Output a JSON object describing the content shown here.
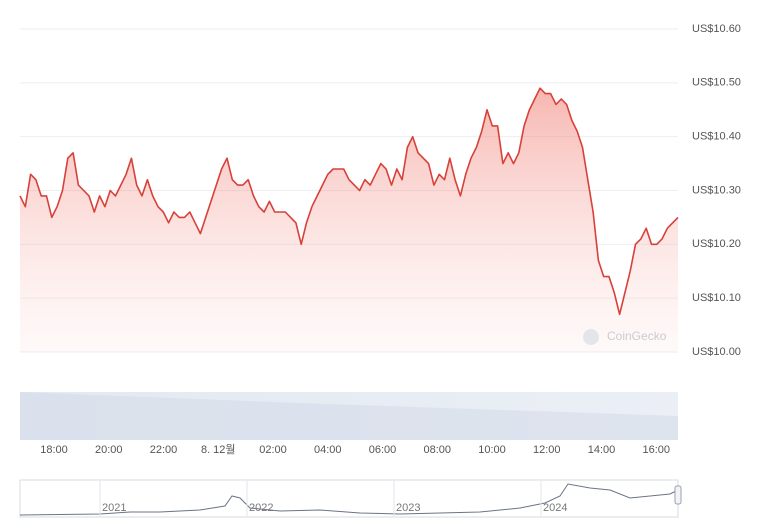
{
  "chart_data": {
    "type": "line",
    "color": "#d8403a",
    "grid": true,
    "watermark": "CoinGecko",
    "ylim": [
      10.0,
      10.6
    ],
    "yticks": [
      {
        "value": 10.0,
        "label": "US$10.00"
      },
      {
        "value": 10.1,
        "label": "US$10.10"
      },
      {
        "value": 10.2,
        "label": "US$10.20"
      },
      {
        "value": 10.3,
        "label": "US$10.30"
      },
      {
        "value": 10.4,
        "label": "US$10.40"
      },
      {
        "value": 10.5,
        "label": "US$10.50"
      },
      {
        "value": 10.6,
        "label": "US$10.60"
      }
    ],
    "xtick_labels": [
      "18:00",
      "20:00",
      "22:00",
      "8. 12월",
      "02:00",
      "04:00",
      "06:00",
      "08:00",
      "10:00",
      "12:00",
      "14:00",
      "16:00"
    ],
    "navigator_labels": [
      "2021",
      "2022",
      "2023",
      "2024"
    ],
    "values": [
      10.29,
      10.27,
      10.33,
      10.32,
      10.29,
      10.29,
      10.25,
      10.27,
      10.3,
      10.36,
      10.37,
      10.31,
      10.3,
      10.29,
      10.26,
      10.29,
      10.27,
      10.3,
      10.29,
      10.31,
      10.33,
      10.36,
      10.31,
      10.29,
      10.32,
      10.29,
      10.27,
      10.26,
      10.24,
      10.26,
      10.25,
      10.25,
      10.26,
      10.24,
      10.22,
      10.25,
      10.28,
      10.31,
      10.34,
      10.36,
      10.32,
      10.31,
      10.31,
      10.32,
      10.29,
      10.27,
      10.26,
      10.28,
      10.26,
      10.26,
      10.26,
      10.25,
      10.24,
      10.2,
      10.24,
      10.27,
      10.29,
      10.31,
      10.33,
      10.34,
      10.34,
      10.34,
      10.32,
      10.31,
      10.3,
      10.32,
      10.31,
      10.33,
      10.35,
      10.34,
      10.31,
      10.34,
      10.32,
      10.38,
      10.4,
      10.37,
      10.36,
      10.35,
      10.31,
      10.33,
      10.32,
      10.36,
      10.32,
      10.29,
      10.33,
      10.36,
      10.38,
      10.41,
      10.45,
      10.42,
      10.42,
      10.35,
      10.37,
      10.35,
      10.37,
      10.42,
      10.45,
      10.47,
      10.49,
      10.48,
      10.48,
      10.46,
      10.47,
      10.46,
      10.43,
      10.41,
      10.38,
      10.32,
      10.26,
      10.17,
      10.14,
      10.14,
      10.11,
      10.07,
      10.11,
      10.15,
      10.2,
      10.21,
      10.23,
      10.2,
      10.2,
      10.21,
      10.23,
      10.24,
      10.25
    ]
  }
}
